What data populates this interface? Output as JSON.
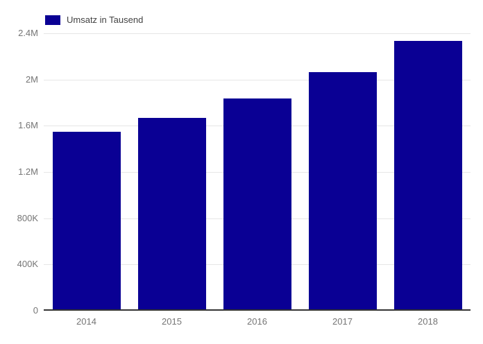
{
  "chart": {
    "legend": {
      "label": "Umsatz in Tausend",
      "swatch": "legend-color-swatch"
    },
    "colors": {
      "bar": "#0A0094",
      "grid": "#e6e6e6",
      "axis_line": "#333333",
      "axis_label": "#757575",
      "legend_text": "#424242",
      "background": "#ffffff"
    }
  },
  "chart_data": {
    "type": "bar",
    "title": "",
    "xlabel": "",
    "ylabel": "",
    "categories": [
      "2014",
      "2015",
      "2016",
      "2017",
      "2018"
    ],
    "series": [
      {
        "name": "Umsatz in Tausend",
        "values": [
          1550000,
          1670000,
          1835000,
          2065000,
          2335000
        ]
      }
    ],
    "ylim": [
      0,
      2400000
    ],
    "yticks": [
      {
        "value": 0,
        "label": "0"
      },
      {
        "value": 400000,
        "label": "400K"
      },
      {
        "value": 800000,
        "label": "800K"
      },
      {
        "value": 1200000,
        "label": "1.2M"
      },
      {
        "value": 1600000,
        "label": "1.6M"
      },
      {
        "value": 2000000,
        "label": "2M"
      },
      {
        "value": 2400000,
        "label": "2.4M"
      }
    ],
    "grid": true,
    "legend_position": "top-left"
  }
}
